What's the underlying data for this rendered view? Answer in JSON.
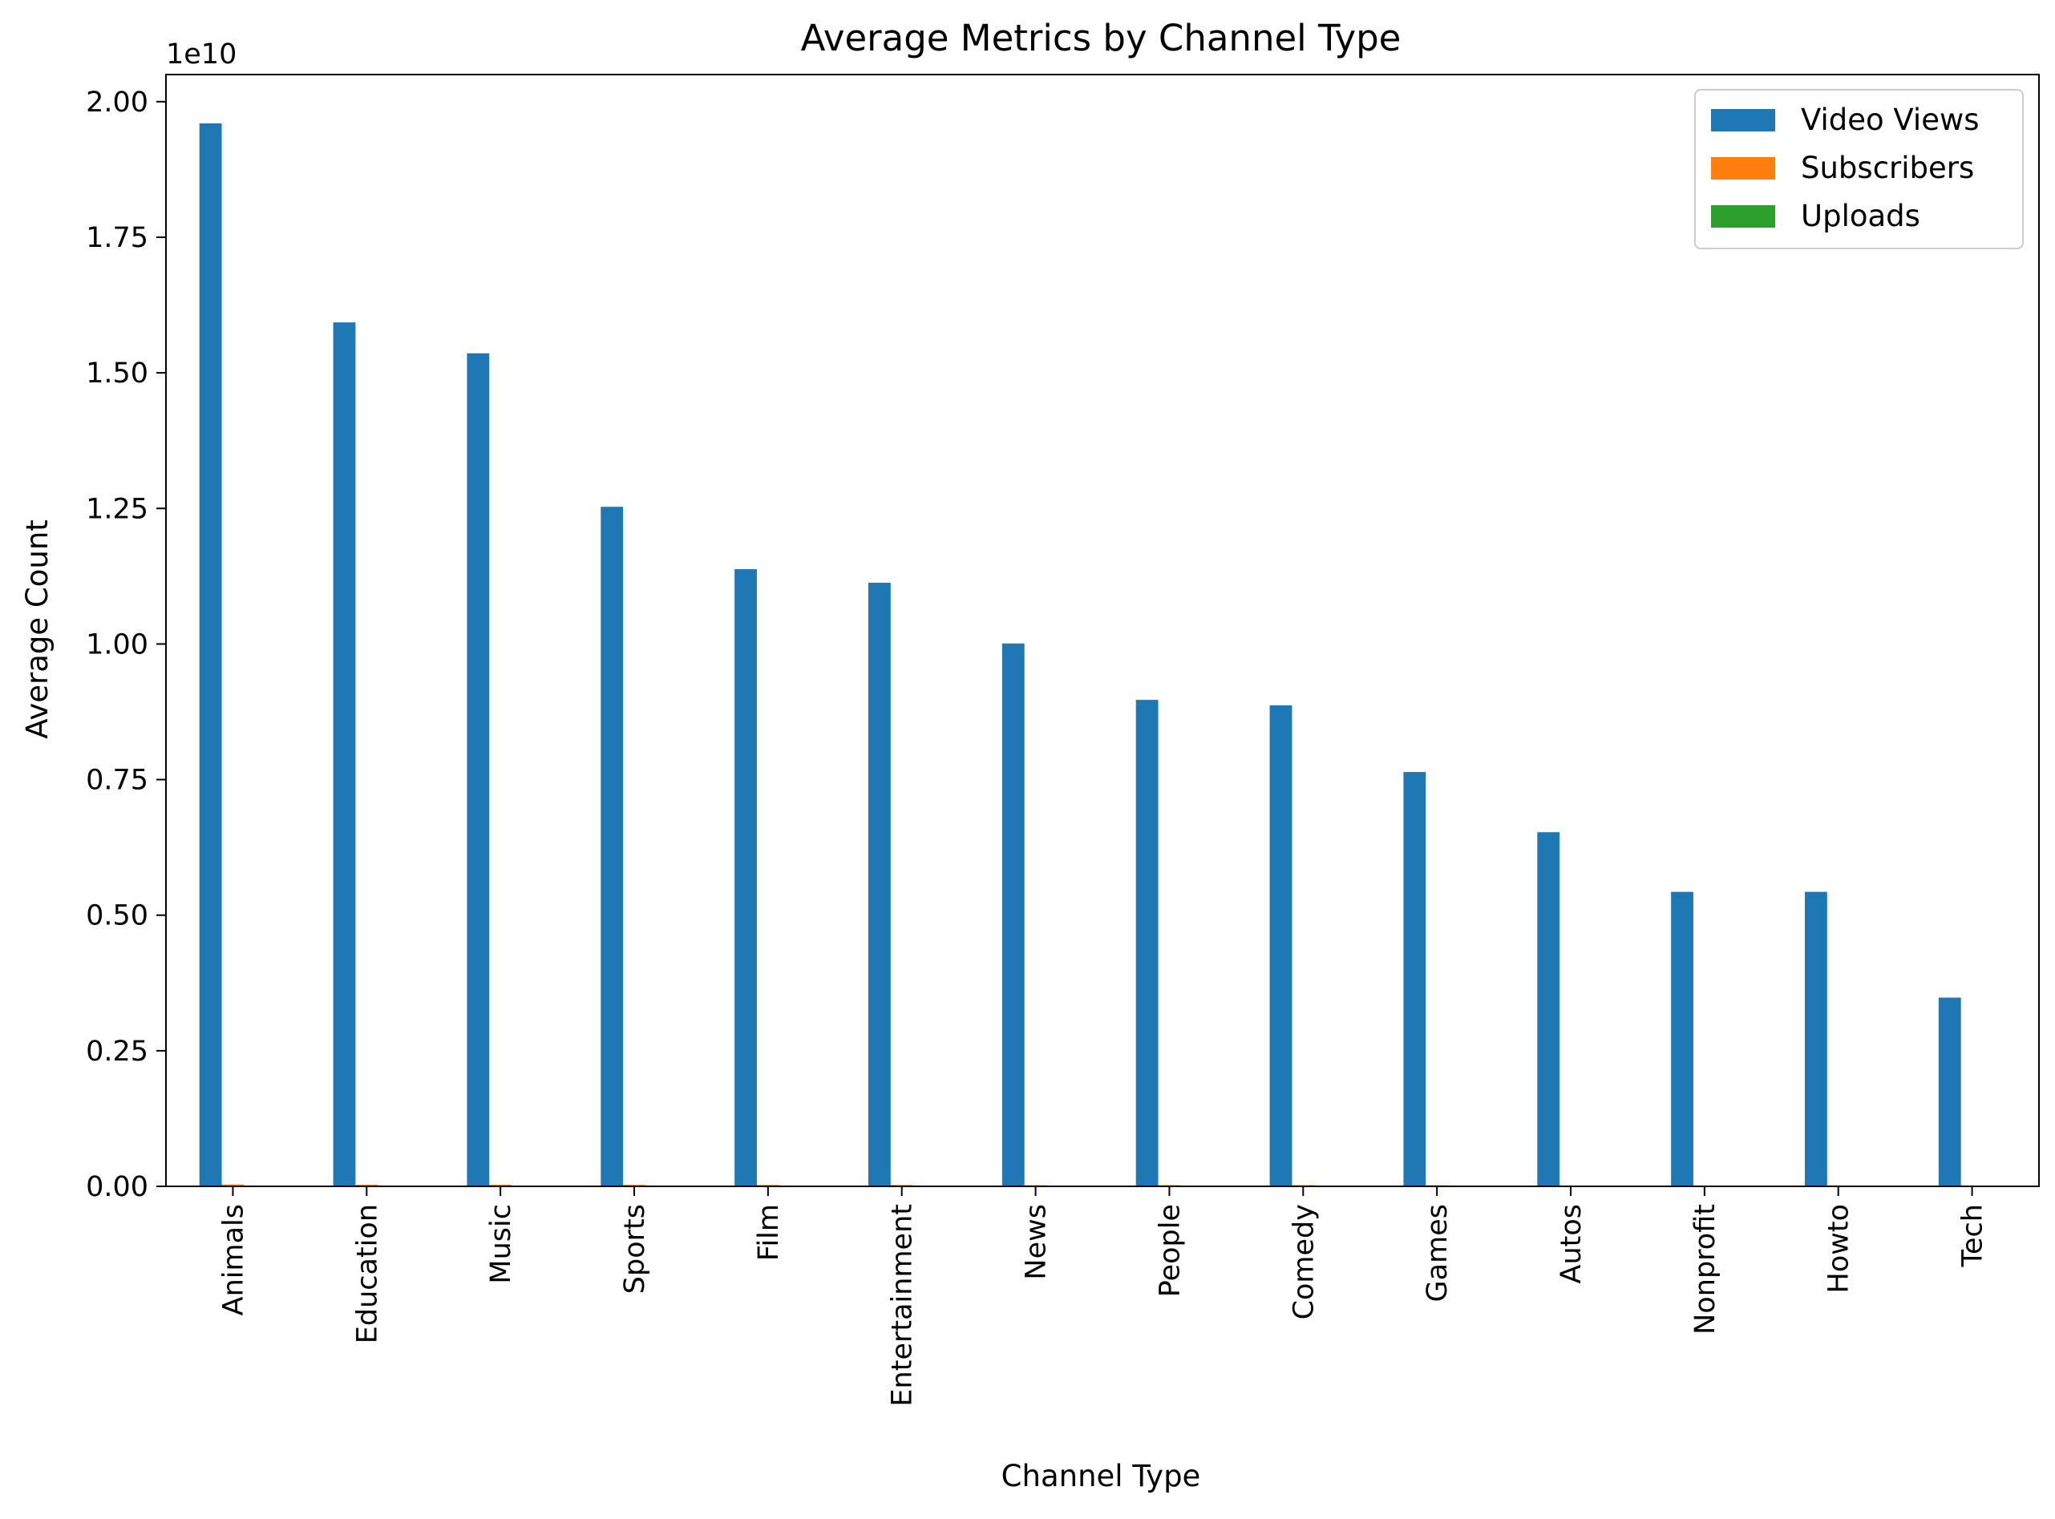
{
  "chart_data": {
    "type": "bar",
    "title": "Average Metrics by Channel Type",
    "xlabel": "Channel Type",
    "ylabel": "Average Count",
    "offset_label": "1e10",
    "ylim": [
      0,
      20500000000.0
    ],
    "yticks": [
      0,
      2500000000.0,
      5000000000.0,
      7500000000.0,
      10000000000.0,
      12500000000.0,
      15000000000.0,
      17500000000.0,
      20000000000.0
    ],
    "ytick_labels": [
      "0.00",
      "0.25",
      "0.50",
      "0.75",
      "1.00",
      "1.25",
      "1.50",
      "1.75",
      "2.00"
    ],
    "categories": [
      "Animals",
      "Education",
      "Music",
      "Sports",
      "Film",
      "Entertainment",
      "News",
      "People",
      "Comedy",
      "Games",
      "Autos",
      "Nonprofit",
      "Howto",
      "Tech"
    ],
    "series": [
      {
        "name": "Video Views",
        "color": "#1f77b4",
        "values": [
          19600000000,
          15930000000,
          15360000000,
          12530000000,
          11380000000,
          11130000000,
          10010000000,
          8970000000,
          8870000000,
          7640000000,
          6530000000,
          5430000000,
          5430000000,
          3480000000
        ]
      },
      {
        "name": "Subscribers",
        "color": "#ff7f0e",
        "values": [
          35000000,
          30000000,
          30000000,
          28000000,
          26000000,
          25000000,
          20000000,
          22000000,
          22000000,
          20000000,
          15000000,
          15000000,
          16000000,
          10000000
        ]
      },
      {
        "name": "Uploads",
        "color": "#2ca02c",
        "values": [
          8000,
          6000,
          4000,
          7000,
          10000,
          9000,
          80000,
          6000,
          2000,
          4000,
          3000,
          2000,
          5000,
          1500
        ]
      }
    ],
    "legend_position": "upper right",
    "grid": false
  }
}
